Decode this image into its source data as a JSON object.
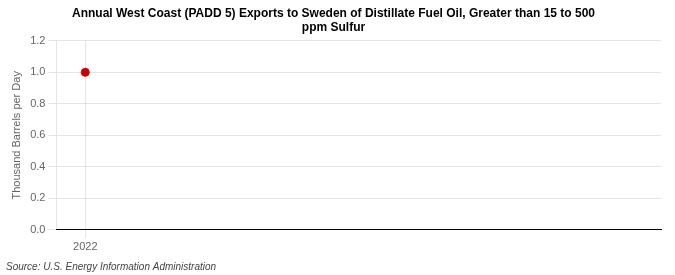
{
  "chart_data": {
    "type": "scatter",
    "title": "Annual West Coast (PADD 5) Exports to Sweden of Distillate Fuel Oil, Greater than 15 to 500\nppm Sulfur",
    "y_label": "Thousand Barrels per Day",
    "annotations": [
      "Source: U.S. Energy Information Administration"
    ],
    "x": [
      2022
    ],
    "values": [
      1.0
    ],
    "color": "#cc0000",
    "marker": "circle",
    "xlim": [
      2021.6,
      2030.0
    ],
    "xticks": [
      2022
    ],
    "ylim": [
      0.0,
      1.2
    ],
    "yticks": [
      {
        "value": 0,
        "label": "0.0"
      },
      0.2,
      0.4,
      0.6,
      0.8,
      {
        "value": 1,
        "label": "1.0"
      },
      1.2
    ],
    "grid": true
  }
}
